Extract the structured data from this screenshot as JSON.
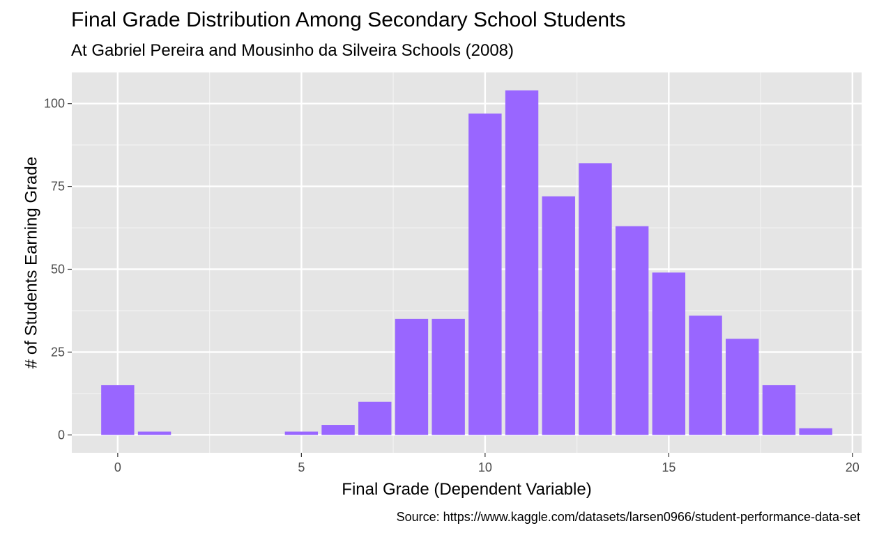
{
  "chart_data": {
    "type": "bar",
    "title": "Final Grade Distribution Among Secondary School Students",
    "subtitle": "At Gabriel Pereira and Mousinho da Silveira Schools (2008)",
    "caption": "Source: https://www.kaggle.com/datasets/larsen0966/student-performance-data-set",
    "xlabel": "Final Grade (Dependent Variable)",
    "ylabel": "# of Students Earning Grade",
    "x": [
      0,
      1,
      5,
      6,
      7,
      8,
      9,
      10,
      11,
      12,
      13,
      14,
      15,
      16,
      17,
      18,
      19
    ],
    "values": [
      15,
      1,
      1,
      3,
      10,
      35,
      35,
      97,
      104,
      72,
      82,
      63,
      49,
      36,
      29,
      15,
      2
    ],
    "xlim": [
      -1.25,
      20.25
    ],
    "ylim": [
      -5.4,
      109.4
    ],
    "x_ticks": [
      0,
      5,
      10,
      15,
      20
    ],
    "x_tick_labels": [
      "0",
      "5",
      "10",
      "15",
      "20"
    ],
    "y_ticks": [
      0,
      25,
      50,
      75,
      100
    ],
    "y_tick_labels": [
      "0",
      "25",
      "50",
      "75",
      "100"
    ],
    "bar_width": 0.9,
    "grid": true,
    "legend": "none",
    "colors": {
      "bar": "#9966FF",
      "panel_background": "#E5E5E5",
      "grid_major": "#FFFFFF",
      "grid_minor": "#F2F2F2",
      "tick_text": "#4D4D4D",
      "tick_mark": "#333333"
    }
  }
}
